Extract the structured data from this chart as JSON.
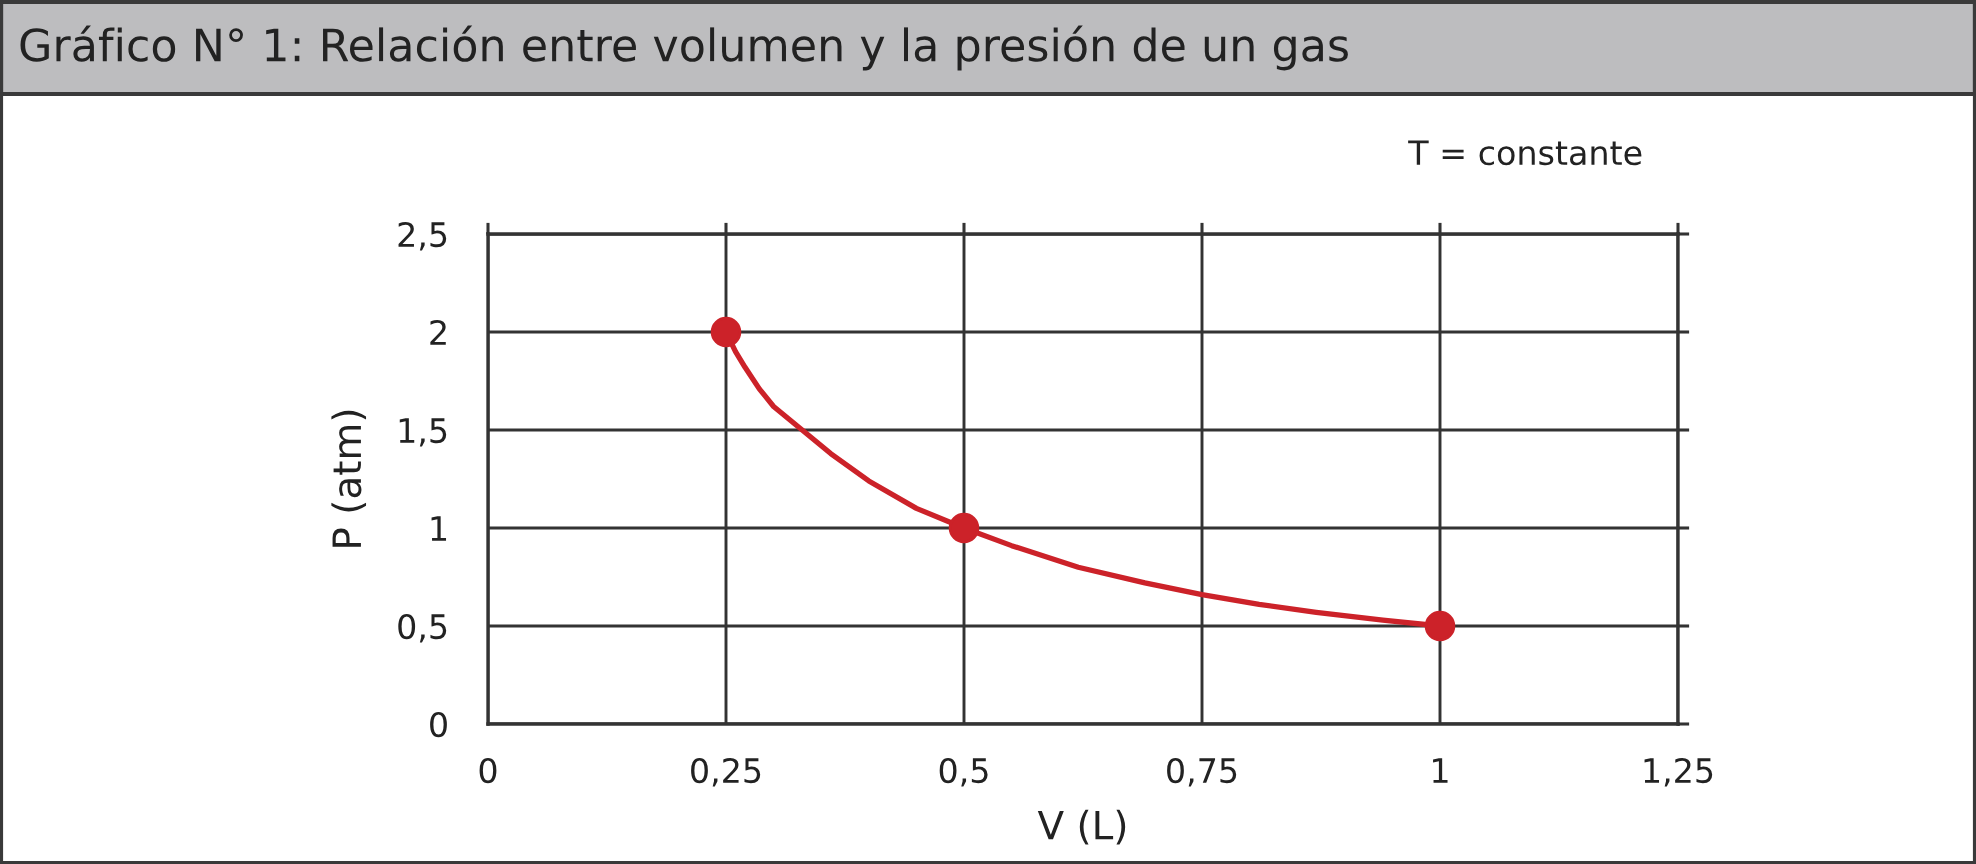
{
  "chart_data": {
    "type": "line",
    "title": "Gráfico N° 1: Relación entre volumen y la presión de un gas",
    "xlabel": "V (L)",
    "ylabel": "P (atm)",
    "annotations": [
      "T = constante"
    ],
    "series": [
      {
        "color": "#cc2229",
        "x": [
          0.25,
          0.26,
          0.27,
          0.285,
          0.3,
          0.33,
          0.36,
          0.4,
          0.45,
          0.5,
          0.55,
          0.62,
          0.69,
          0.75,
          0.81,
          0.87,
          0.94,
          1
        ],
        "values": [
          2,
          1.9,
          1.82,
          1.71,
          1.62,
          1.5,
          1.38,
          1.24,
          1.1,
          1,
          0.91,
          0.8,
          0.72,
          0.66,
          0.61,
          0.57,
          0.53,
          0.5
        ]
      },
      {
        "type": "scatter",
        "color": "#cc2229",
        "marker": "circle",
        "x": [
          0.25,
          0.5,
          1
        ],
        "values": [
          2,
          1,
          0.5
        ]
      }
    ],
    "xlim": [
      0,
      1.25
    ],
    "ylim": [
      0,
      2.5
    ],
    "xticks": [
      0,
      {
        "value": 0.25,
        "label": "0,25"
      },
      {
        "value": 0.5,
        "label": "0,5"
      },
      {
        "value": 0.75,
        "label": "0,75"
      },
      1,
      {
        "value": 1.25,
        "label": "1,25"
      }
    ],
    "yticks": [
      0,
      {
        "value": 0.5,
        "label": "0,5"
      },
      1,
      {
        "value": 1.5,
        "label": "1,5"
      },
      2,
      {
        "value": 2.5,
        "label": "2,5"
      }
    ],
    "grid": true
  }
}
